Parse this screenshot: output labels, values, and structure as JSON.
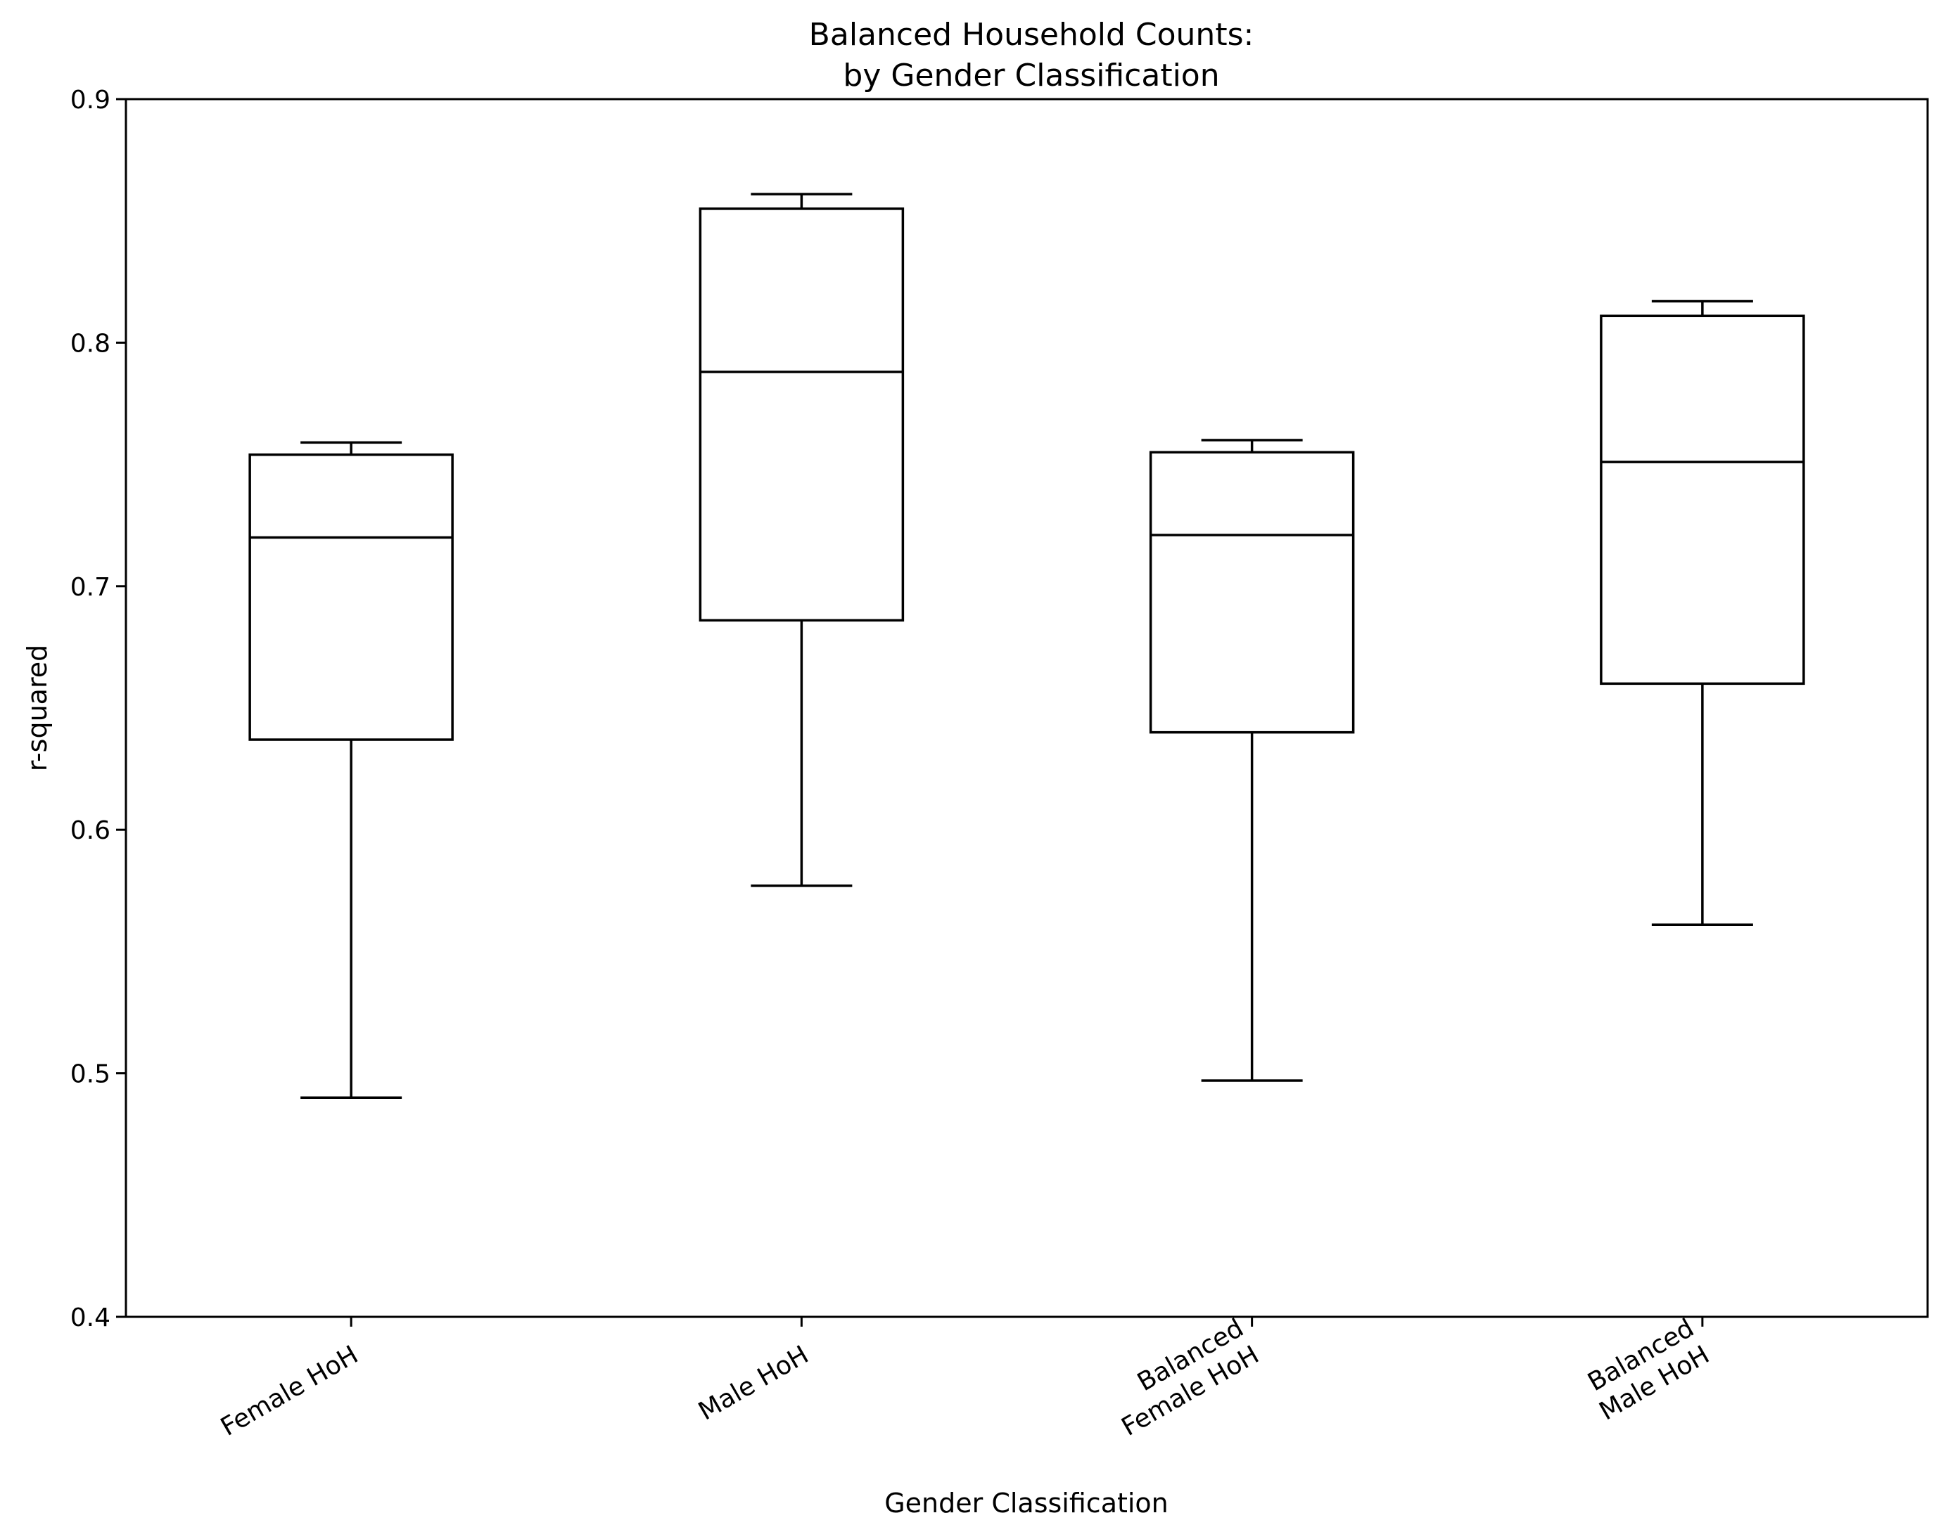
{
  "chart_data": {
    "type": "box",
    "title": [
      "Balanced Household Counts:",
      "by Gender Classification"
    ],
    "xlabel": "Gender Classification",
    "ylabel": "r-squared",
    "ylim": [
      0.4,
      0.9
    ],
    "yticks": [
      "0.4",
      "0.5",
      "0.6",
      "0.7",
      "0.8",
      "0.9"
    ],
    "grid": false,
    "legend": "none",
    "categories": [
      {
        "lines": [
          "Female HoH"
        ]
      },
      {
        "lines": [
          "Male HoH"
        ]
      },
      {
        "lines": [
          "Balanced",
          "Female HoH"
        ]
      },
      {
        "lines": [
          "Balanced",
          "Male HoH"
        ]
      }
    ],
    "boxes": [
      {
        "whislo": 0.49,
        "q1": 0.637,
        "med": 0.72,
        "q3": 0.754,
        "whishi": 0.759
      },
      {
        "whislo": 0.577,
        "q1": 0.686,
        "med": 0.788,
        "q3": 0.855,
        "whishi": 0.861
      },
      {
        "whislo": 0.497,
        "q1": 0.64,
        "med": 0.721,
        "q3": 0.755,
        "whishi": 0.76
      },
      {
        "whislo": 0.561,
        "q1": 0.66,
        "med": 0.751,
        "q3": 0.811,
        "whishi": 0.817
      }
    ],
    "colors": {
      "line": "#000000",
      "background": "#ffffff"
    }
  }
}
